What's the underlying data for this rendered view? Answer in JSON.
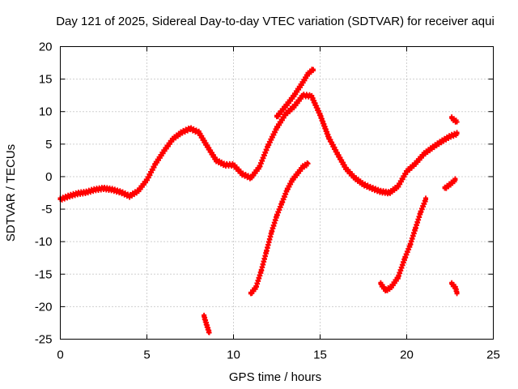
{
  "chart_data": {
    "type": "scatter",
    "title": "Day 121 of 2025, Sidereal Day-to-day VTEC variation (SDTVAR) for receiver aqui",
    "xlabel": "GPS time / hours",
    "ylabel": "SDTVAR / TECUs",
    "xlim": [
      0,
      25
    ],
    "ylim": [
      -25,
      20
    ],
    "xticks": [
      0,
      5,
      10,
      15,
      20,
      25
    ],
    "yticks": [
      -25,
      -20,
      -15,
      -10,
      -5,
      0,
      5,
      10,
      15,
      20
    ],
    "grid": true,
    "marker": "+",
    "color": "#ff0000",
    "series": [
      {
        "name": "main-band",
        "x": [
          0,
          0.5,
          1,
          1.5,
          2,
          2.5,
          3,
          3.5,
          4,
          4.5,
          5,
          5.5,
          6,
          6.5,
          7,
          7.5,
          8,
          8.5,
          9,
          9.5,
          10,
          10.5,
          11,
          11.5,
          12,
          12.5,
          13,
          13.5,
          14,
          14.5,
          15,
          15.5,
          16,
          16.5,
          17,
          17.5,
          18,
          18.5,
          19,
          19.5,
          20,
          20.5,
          21,
          21.5,
          22,
          22.5,
          22.9
        ],
        "y": [
          -3.5,
          -3,
          -2.6,
          -2.4,
          -2,
          -1.8,
          -2,
          -2.4,
          -3,
          -2.2,
          -0.5,
          2,
          4,
          5.8,
          6.8,
          7.4,
          6.8,
          4.6,
          2.5,
          1.8,
          1.8,
          0.4,
          -0.2,
          1.5,
          4.8,
          7.5,
          9.6,
          10.8,
          12.5,
          12.4,
          9.5,
          6,
          3.5,
          1.2,
          -0.2,
          -1.2,
          -1.8,
          -2.3,
          -2.5,
          -1.5,
          0.8,
          2,
          3.5,
          4.5,
          5.4,
          6.2,
          6.6
        ]
      },
      {
        "name": "upper-band",
        "x": [
          12.5,
          13,
          13.5,
          14,
          14.3,
          14.6
        ],
        "y": [
          9.2,
          10.8,
          12.5,
          14.5,
          15.8,
          16.5
        ]
      },
      {
        "name": "rising-arc",
        "x": [
          11,
          11.3,
          11.6,
          11.9,
          12.2,
          12.5,
          12.8,
          13.1,
          13.4,
          13.7,
          14,
          14.3
        ],
        "y": [
          -18,
          -17,
          -14.5,
          -11.5,
          -8.5,
          -6,
          -4,
          -2,
          -0.5,
          0.5,
          1.5,
          2
        ]
      },
      {
        "name": "rising-arc-2",
        "x": [
          18.5,
          18.8,
          19.1,
          19.5,
          19.9,
          20.2,
          20.5,
          20.8,
          21.1
        ],
        "y": [
          -16.5,
          -17.5,
          -17,
          -15.5,
          -12.5,
          -10.5,
          -8,
          -5.5,
          -3.5
        ]
      },
      {
        "name": "fragment-1",
        "x": [
          8.3,
          8.45,
          8.6
        ],
        "y": [
          -21.5,
          -22.8,
          -24
        ]
      },
      {
        "name": "fragment-2",
        "x": [
          22.2,
          22.5,
          22.8
        ],
        "y": [
          -1.8,
          -1.2,
          -0.5
        ]
      },
      {
        "name": "fragment-3",
        "x": [
          22.6,
          22.9
        ],
        "y": [
          9,
          8.4
        ]
      },
      {
        "name": "fragment-4",
        "x": [
          22.6,
          22.8,
          22.9
        ],
        "y": [
          -16.5,
          -17,
          -17.8
        ]
      }
    ]
  }
}
